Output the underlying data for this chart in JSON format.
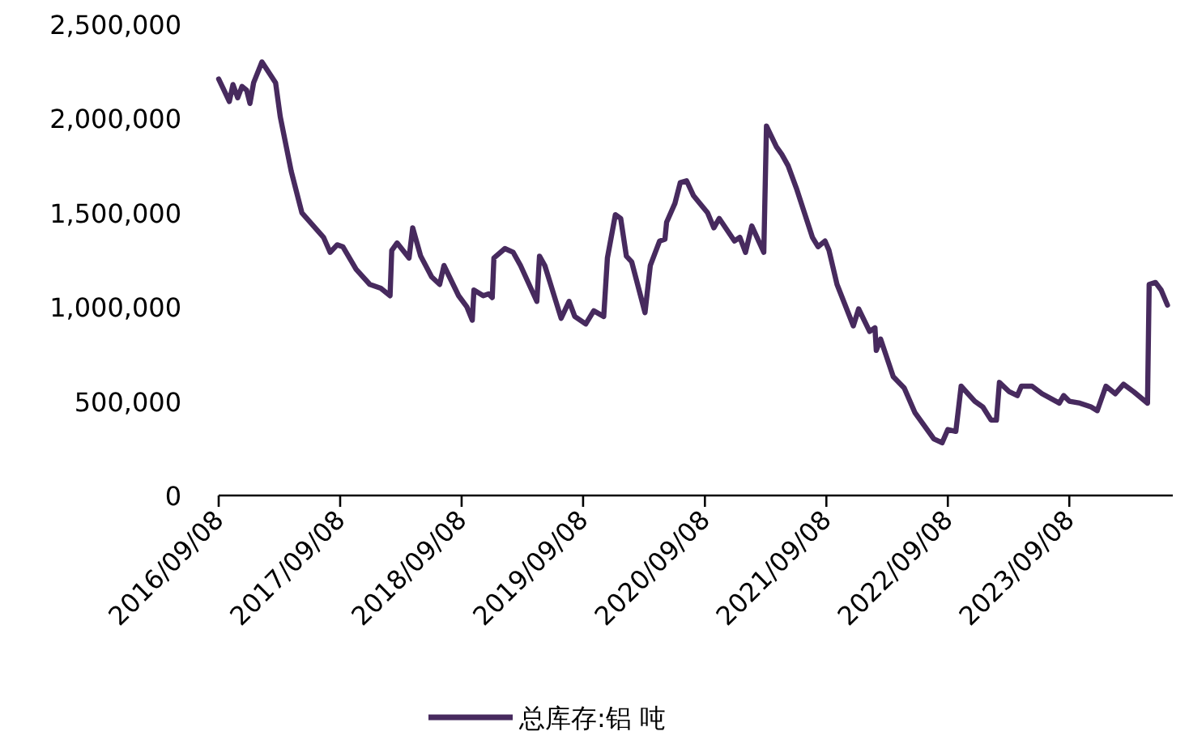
{
  "chart_data": {
    "type": "line",
    "legend": "bottom",
    "line_style": "solid",
    "xlim": [
      "2016-09-08",
      "2024-07-15"
    ],
    "xticks": [
      {
        "value": "2016-09-08",
        "label": "2016/09/08"
      },
      {
        "value": "2017-09-08",
        "label": "2017/09/08"
      },
      {
        "value": "2018-09-08",
        "label": "2018/09/08"
      },
      {
        "value": "2019-09-08",
        "label": "2019/09/08"
      },
      {
        "value": "2020-09-08",
        "label": "2020/09/08"
      },
      {
        "value": "2021-09-08",
        "label": "2021/09/08"
      },
      {
        "value": "2022-09-08",
        "label": "2022/09/08"
      },
      {
        "value": "2023-09-08",
        "label": "2023/09/08"
      }
    ],
    "ylim": [
      0,
      2500000
    ],
    "yticks": [
      0,
      {
        "value": 500000,
        "label": "500,000"
      },
      {
        "value": 1000000,
        "label": "1,000,000"
      },
      {
        "value": 1500000,
        "label": "1,500,000"
      },
      {
        "value": 2000000,
        "label": "2,000,000"
      },
      {
        "value": 2500000,
        "label": "2,500,000"
      }
    ],
    "x": [
      "2016-09-08",
      "2016-09-24",
      "2016-10-10",
      "2016-10-21",
      "2016-11-04",
      "2016-11-17",
      "2016-12-01",
      "2016-12-11",
      "2016-12-22",
      "2017-01-16",
      "2017-02-26",
      "2017-03-12",
      "2017-04-14",
      "2017-05-16",
      "2017-07-20",
      "2017-08-09",
      "2017-08-30",
      "2017-09-16",
      "2017-10-26",
      "2017-12-06",
      "2018-01-08",
      "2018-02-05",
      "2018-02-10",
      "2018-02-26",
      "2018-04-03",
      "2018-04-14",
      "2018-05-08",
      "2018-06-10",
      "2018-07-04",
      "2018-07-17",
      "2018-08-30",
      "2018-09-24",
      "2018-10-10",
      "2018-10-15",
      "2018-11-12",
      "2018-11-28",
      "2018-12-09",
      "2018-12-14",
      "2019-01-16",
      "2019-02-10",
      "2019-03-04",
      "2019-04-22",
      "2019-04-30",
      "2019-05-16",
      "2019-07-04",
      "2019-07-28",
      "2019-08-14",
      "2019-09-16",
      "2019-10-10",
      "2019-11-09",
      "2019-11-20",
      "2019-12-14",
      "2019-12-30",
      "2020-01-16",
      "2020-02-01",
      "2020-03-12",
      "2020-03-28",
      "2020-04-25",
      "2020-05-11",
      "2020-05-16",
      "2020-06-10",
      "2020-06-26",
      "2020-07-15",
      "2020-08-05",
      "2020-09-16",
      "2020-10-05",
      "2020-10-21",
      "2020-12-06",
      "2020-12-22",
      "2021-01-08",
      "2021-01-27",
      "2021-03-04",
      "2021-03-12",
      "2021-04-11",
      "2021-04-27",
      "2021-05-16",
      "2021-06-10",
      "2021-07-28",
      "2021-08-14",
      "2021-09-04",
      "2021-09-16",
      "2021-10-10",
      "2021-11-28",
      "2021-12-14",
      "2022-01-16",
      "2022-02-01",
      "2022-02-05",
      "2022-02-18",
      "2022-03-28",
      "2022-04-30",
      "2022-06-01",
      "2022-07-28",
      "2022-08-22",
      "2022-09-08",
      "2022-10-02",
      "2022-10-18",
      "2022-11-28",
      "2022-12-22",
      "2023-01-16",
      "2023-02-01",
      "2023-02-10",
      "2023-03-12",
      "2023-04-05",
      "2023-04-17",
      "2023-05-19",
      "2023-06-18",
      "2023-08-09",
      "2023-08-22",
      "2023-09-08",
      "2023-10-10",
      "2023-11-12",
      "2023-12-01",
      "2023-12-27",
      "2024-01-24",
      "2024-02-18",
      "2024-03-20",
      "2024-04-30",
      "2024-05-05",
      "2024-05-24",
      "2024-06-10",
      "2024-06-29"
    ],
    "series": [
      {
        "name": "总库存:铝 吨",
        "color": "#472a5e",
        "values": [
          2210000,
          2150000,
          2090000,
          2180000,
          2110000,
          2170000,
          2150000,
          2080000,
          2190000,
          2300000,
          2190000,
          2010000,
          1720000,
          1500000,
          1370000,
          1290000,
          1330000,
          1320000,
          1200000,
          1120000,
          1100000,
          1060000,
          1300000,
          1340000,
          1260000,
          1420000,
          1270000,
          1160000,
          1120000,
          1220000,
          1060000,
          1000000,
          930000,
          1090000,
          1060000,
          1070000,
          1050000,
          1260000,
          1310000,
          1290000,
          1220000,
          1030000,
          1270000,
          1220000,
          940000,
          1030000,
          950000,
          910000,
          980000,
          950000,
          1260000,
          1490000,
          1470000,
          1270000,
          1240000,
          970000,
          1220000,
          1350000,
          1360000,
          1450000,
          1550000,
          1660000,
          1670000,
          1590000,
          1500000,
          1420000,
          1470000,
          1350000,
          1370000,
          1290000,
          1430000,
          1290000,
          1960000,
          1850000,
          1810000,
          1750000,
          1630000,
          1370000,
          1320000,
          1350000,
          1300000,
          1120000,
          900000,
          990000,
          870000,
          890000,
          770000,
          830000,
          630000,
          570000,
          440000,
          300000,
          280000,
          350000,
          340000,
          580000,
          500000,
          470000,
          400000,
          400000,
          600000,
          550000,
          530000,
          580000,
          580000,
          540000,
          490000,
          530000,
          500000,
          490000,
          470000,
          450000,
          580000,
          540000,
          590000,
          550000,
          490000,
          1120000,
          1130000,
          1090000,
          1010000
        ]
      }
    ]
  }
}
